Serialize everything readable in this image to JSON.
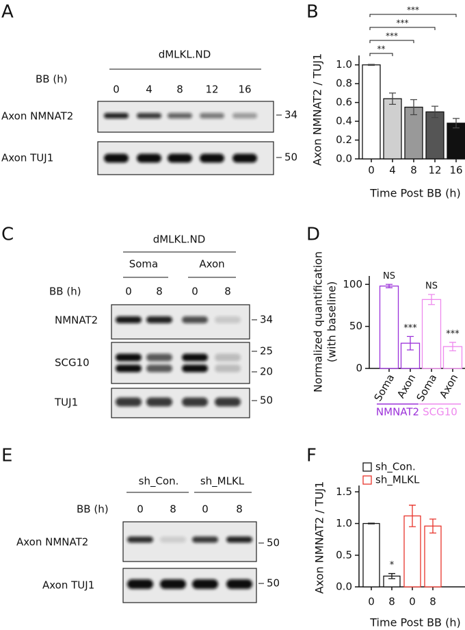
{
  "panel_labels": [
    "A",
    "B",
    "C",
    "D",
    "E",
    "F"
  ],
  "blots": [
    {
      "header": "dMLKL.ND",
      "condition_label": "BB (h)",
      "lanes": [
        "0",
        "4",
        "8",
        "12",
        "16"
      ],
      "rows": [
        {
          "label": "Axon NMNAT2",
          "markers": [
            "34"
          ]
        },
        {
          "label": "Axon TUJ1",
          "markers": [
            "50"
          ]
        }
      ]
    },
    {
      "header": "dMLKL.ND",
      "groups": [
        "Soma",
        "Axon"
      ],
      "condition_label": "BB (h)",
      "lanes": [
        "0",
        "8",
        "0",
        "8"
      ],
      "rows": [
        {
          "label": "NMNAT2",
          "markers": [
            "34"
          ]
        },
        {
          "label": "SCG10",
          "markers": [
            "25",
            "20"
          ]
        },
        {
          "label": "TUJ1",
          "markers": [
            "50"
          ]
        }
      ]
    },
    {
      "groups": [
        "sh_Con.",
        "sh_MLKL"
      ],
      "condition_label": "BB (h)",
      "lanes": [
        "0",
        "8",
        "0",
        "8"
      ],
      "rows": [
        {
          "label": "Axon NMNAT2",
          "markers": [
            "50"
          ]
        },
        {
          "label": "Axon TUJ1",
          "markers": [
            "50"
          ]
        }
      ]
    }
  ],
  "chart_data": [
    {
      "type": "bar",
      "ylabel": "Axon NMNAT2 / TUJ1",
      "xlabel": "Time Post BB (h)",
      "bar_style": "filled",
      "categories": [
        "0",
        "4",
        "8",
        "12",
        "16"
      ],
      "values": [
        1.0,
        0.64,
        0.55,
        0.5,
        0.38
      ],
      "errors": [
        0.005,
        0.06,
        0.08,
        0.06,
        0.05
      ],
      "colors": [
        "#ffffff",
        "#cfcfcf",
        "#999999",
        "#555555",
        "#111111"
      ],
      "ylim": [
        0,
        1.1
      ],
      "yticks": [
        {
          "value": 0,
          "label": "0.0"
        },
        0.2,
        0.4,
        0.6,
        0.8,
        {
          "value": 1,
          "label": "1.0"
        }
      ],
      "significance": [
        "**",
        "***",
        "***",
        "***"
      ]
    },
    {
      "type": "bar",
      "ylabel": [
        "Normalized quantification",
        "(with baseline)"
      ],
      "bar_style": "outline",
      "categories": [
        "Soma",
        "Axon",
        "Soma",
        "Axon"
      ],
      "values": [
        98,
        30,
        82,
        26
      ],
      "errors": [
        2,
        8,
        6,
        5
      ],
      "colors": [
        "#9b30d9",
        "#9b30d9",
        "#ee88ee",
        "#ee88ee"
      ],
      "groups": [
        {
          "name": "NMNAT2",
          "color": "#9b30d9"
        },
        {
          "name": "SCG10",
          "color": "#ee88ee"
        }
      ],
      "annotations": [
        "NS",
        "***",
        "NS",
        "***"
      ],
      "ylim": [
        0,
        110
      ],
      "yticks": [
        0,
        50,
        100
      ]
    },
    {
      "type": "bar",
      "ylabel": "Axon NMNAT2 / TUJ1",
      "xlabel": "Time Post BB (h)",
      "bar_style": "outline",
      "categories": [
        "0",
        "8",
        "0",
        "8"
      ],
      "series": [
        {
          "name": "sh_Con.",
          "color": "#111111",
          "values": [
            1.0,
            0.17,
            null,
            null
          ],
          "errors": [
            0.005,
            0.04,
            null,
            null
          ]
        },
        {
          "name": "sh_MLKL",
          "color": "#e8332a",
          "values": [
            null,
            null,
            1.12,
            0.96
          ],
          "errors": [
            null,
            null,
            0.17,
            0.11
          ]
        }
      ],
      "annotations": [
        null,
        "*",
        null,
        null
      ],
      "ylim": [
        0,
        1.6
      ],
      "yticks": [
        {
          "value": 0,
          "label": "0.0"
        },
        0.5,
        {
          "value": 1,
          "label": "1.0"
        },
        1.5
      ]
    }
  ]
}
